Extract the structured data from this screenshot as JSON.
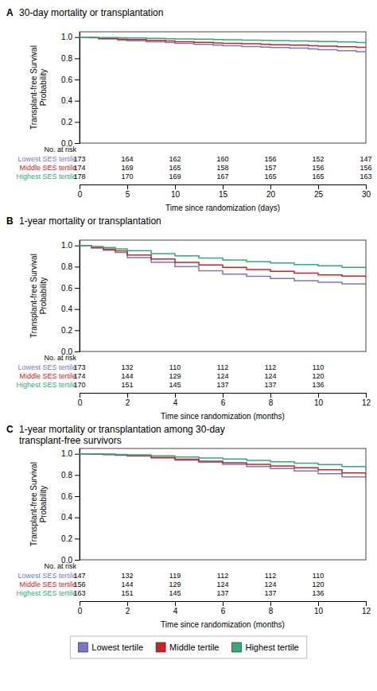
{
  "chart_data": [
    {
      "type": "step",
      "title": "A",
      "subtitle": "30-day mortality or transplantation",
      "xlabel": "Time since randomization (days)",
      "ylabel": "Transplant-free Survival\nProbability",
      "xlim": [
        0,
        30
      ],
      "ylim": [
        0.0,
        1.05
      ],
      "xticks": [
        0,
        5,
        10,
        15,
        20,
        25,
        30
      ],
      "yticks": [
        {
          "value": 0.0,
          "label": "0.0"
        },
        0.2,
        0.4,
        0.6,
        0.8,
        {
          "value": 1.0,
          "label": "1.0"
        }
      ],
      "grid": false,
      "at_risk_title": "No. at risk",
      "at_risk_times": [
        0,
        5,
        10,
        15,
        20,
        25,
        30
      ],
      "series": [
        {
          "name": "Lowest SES tertile",
          "color": "#7777cc",
          "x": [
            0,
            1,
            2,
            4,
            5,
            7,
            9,
            10,
            12,
            14,
            15,
            17,
            19,
            20,
            22,
            24,
            25,
            27,
            29,
            30
          ],
          "values": [
            1.0,
            0.994,
            0.983,
            0.972,
            0.965,
            0.957,
            0.948,
            0.941,
            0.932,
            0.924,
            0.918,
            0.912,
            0.906,
            0.902,
            0.896,
            0.889,
            0.881,
            0.872,
            0.862,
            0.855
          ],
          "at_risk": [
            173,
            164,
            162,
            160,
            156,
            152,
            147
          ]
        },
        {
          "name": "Middle SES tertile",
          "color": "#cc2222",
          "x": [
            0,
            1,
            2,
            4,
            5,
            7,
            9,
            10,
            12,
            14,
            15,
            17,
            19,
            20,
            22,
            24,
            25,
            27,
            29,
            30
          ],
          "values": [
            1.0,
            0.996,
            0.989,
            0.981,
            0.976,
            0.97,
            0.963,
            0.957,
            0.951,
            0.945,
            0.941,
            0.937,
            0.932,
            0.928,
            0.924,
            0.919,
            0.915,
            0.91,
            0.904,
            0.898
          ],
          "at_risk": [
            174,
            169,
            165,
            158,
            157,
            156,
            156
          ]
        },
        {
          "name": "Highest SES tertile",
          "color": "#33aa77",
          "x": [
            0,
            1,
            2,
            4,
            5,
            7,
            9,
            10,
            12,
            14,
            15,
            17,
            19,
            20,
            22,
            24,
            25,
            27,
            29,
            30
          ],
          "values": [
            1.0,
            0.998,
            0.996,
            0.993,
            0.991,
            0.988,
            0.985,
            0.983,
            0.98,
            0.977,
            0.975,
            0.972,
            0.969,
            0.967,
            0.964,
            0.961,
            0.958,
            0.954,
            0.949,
            0.93
          ],
          "at_risk": [
            178,
            170,
            169,
            167,
            165,
            165,
            163
          ]
        }
      ]
    },
    {
      "type": "step",
      "title": "B",
      "subtitle": "1-year mortality or transplantation",
      "xlabel": "Time since randomization (months)",
      "ylabel": "Transplant-free Survival\nProbability",
      "xlim": [
        0,
        12
      ],
      "ylim": [
        0.0,
        1.05
      ],
      "xticks": [
        0,
        2,
        4,
        6,
        8,
        10,
        12
      ],
      "yticks": [
        {
          "value": 0.0,
          "label": "0.0"
        },
        0.2,
        0.4,
        0.6,
        0.8,
        {
          "value": 1.0,
          "label": "1.0"
        }
      ],
      "grid": false,
      "at_risk_title": "No. at risk",
      "at_risk_times": [
        0,
        2,
        4,
        6,
        8,
        10
      ],
      "series": [
        {
          "name": "Lowest SES tertile",
          "color": "#7777cc",
          "x": [
            0,
            0.5,
            1,
            1.5,
            2,
            3,
            4,
            5,
            6,
            7,
            8,
            9,
            10,
            11,
            12
          ],
          "values": [
            1.0,
            0.975,
            0.955,
            0.933,
            0.885,
            0.842,
            0.8,
            0.762,
            0.73,
            0.708,
            0.688,
            0.668,
            0.652,
            0.638,
            0.625
          ],
          "at_risk": [
            173,
            132,
            110,
            112,
            112,
            110
          ]
        },
        {
          "name": "Middle SES tertile",
          "color": "#cc2222",
          "x": [
            0,
            0.5,
            1,
            1.5,
            2,
            3,
            4,
            5,
            6,
            7,
            8,
            9,
            10,
            11,
            12
          ],
          "values": [
            1.0,
            0.98,
            0.965,
            0.948,
            0.91,
            0.872,
            0.84,
            0.815,
            0.793,
            0.772,
            0.755,
            0.738,
            0.722,
            0.71,
            0.695
          ],
          "at_risk": [
            174,
            144,
            129,
            124,
            124,
            120
          ]
        },
        {
          "name": "Highest SES tertile",
          "color": "#33aa77",
          "x": [
            0,
            0.5,
            1,
            1.5,
            2,
            3,
            4,
            5,
            6,
            7,
            8,
            9,
            10,
            11,
            12
          ],
          "values": [
            1.0,
            0.99,
            0.98,
            0.968,
            0.95,
            0.922,
            0.902,
            0.882,
            0.862,
            0.848,
            0.835,
            0.82,
            0.808,
            0.793,
            0.775
          ],
          "at_risk": [
            170,
            151,
            145,
            137,
            137,
            136
          ]
        }
      ]
    },
    {
      "type": "step",
      "title": "C",
      "subtitle": "1-year mortality or transplantation among 30-day\ntransplant-free survivors",
      "xlabel": "Time since randomization (months)",
      "ylabel": "Transplant-free Survival\nProbability",
      "xlim": [
        0,
        12
      ],
      "ylim": [
        0.0,
        1.05
      ],
      "xticks": [
        0,
        2,
        4,
        6,
        8,
        10,
        12
      ],
      "yticks": [
        {
          "value": 0.0,
          "label": "0.0"
        },
        0.2,
        0.4,
        0.6,
        0.8,
        {
          "value": 1.0,
          "label": "1.0"
        }
      ],
      "grid": false,
      "at_risk_title": "No. at risk",
      "at_risk_times": [
        0,
        2,
        4,
        6,
        8,
        10
      ],
      "series": [
        {
          "name": "Lowest SES tertile",
          "color": "#7777cc",
          "x": [
            0,
            0.5,
            1,
            1.5,
            2,
            3,
            4,
            5,
            6,
            7,
            8,
            9,
            10,
            11,
            12
          ],
          "values": [
            1.0,
            0.996,
            0.991,
            0.986,
            0.978,
            0.96,
            0.94,
            0.92,
            0.9,
            0.88,
            0.86,
            0.838,
            0.812,
            0.782,
            0.748
          ],
          "at_risk": [
            147,
            132,
            119,
            112,
            112,
            110
          ]
        },
        {
          "name": "Middle SES tertile",
          "color": "#cc2222",
          "x": [
            0,
            0.5,
            1,
            1.5,
            2,
            3,
            4,
            5,
            6,
            7,
            8,
            9,
            10,
            11,
            12
          ],
          "values": [
            1.0,
            0.998,
            0.994,
            0.99,
            0.982,
            0.965,
            0.948,
            0.93,
            0.915,
            0.9,
            0.885,
            0.868,
            0.85,
            0.82,
            0.775
          ],
          "at_risk": [
            156,
            144,
            129,
            124,
            124,
            120
          ]
        },
        {
          "name": "Highest SES tertile",
          "color": "#33aa77",
          "x": [
            0,
            0.5,
            1,
            1.5,
            2,
            3,
            4,
            5,
            6,
            7,
            8,
            9,
            10,
            11,
            12
          ],
          "values": [
            1.0,
            0.999,
            0.997,
            0.994,
            0.99,
            0.98,
            0.97,
            0.96,
            0.95,
            0.938,
            0.925,
            0.912,
            0.898,
            0.88,
            0.845
          ],
          "at_risk": [
            163,
            151,
            145,
            137,
            137,
            136
          ]
        }
      ]
    }
  ],
  "legend_labels": [
    "Lowest tertile",
    "Middle tertile",
    "Highest tertile"
  ]
}
